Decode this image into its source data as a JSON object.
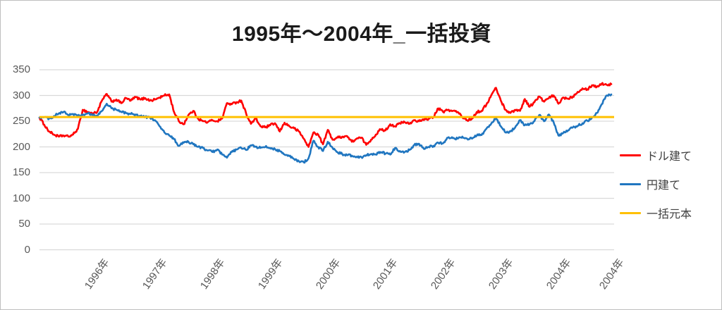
{
  "window": {
    "background": "#FFFFFF",
    "border_color": "#BFBFBF"
  },
  "chart_data": {
    "type": "line",
    "title": "1995年～2004年_一括投資",
    "x_interval": "month",
    "months": [
      "1995-01",
      "1995-02",
      "1995-03",
      "1995-04",
      "1995-05",
      "1995-06",
      "1995-07",
      "1995-08",
      "1995-09",
      "1995-10",
      "1995-11",
      "1995-12",
      "1996-01",
      "1996-02",
      "1996-03",
      "1996-04",
      "1996-05",
      "1996-06",
      "1996-07",
      "1996-08",
      "1996-09",
      "1996-10",
      "1996-11",
      "1996-12",
      "1997-01",
      "1997-02",
      "1997-03",
      "1997-04",
      "1997-05",
      "1997-06",
      "1997-07",
      "1997-08",
      "1997-09",
      "1997-10",
      "1997-11",
      "1997-12",
      "1998-01",
      "1998-02",
      "1998-03",
      "1998-04",
      "1998-05",
      "1998-06",
      "1998-07",
      "1998-08",
      "1998-09",
      "1998-10",
      "1998-11",
      "1998-12",
      "1999-01",
      "1999-02",
      "1999-03",
      "1999-04",
      "1999-05",
      "1999-06",
      "1999-07",
      "1999-08",
      "1999-09",
      "1999-10",
      "1999-11",
      "1999-12",
      "2000-01",
      "2000-02",
      "2000-03",
      "2000-04",
      "2000-05",
      "2000-06",
      "2000-07",
      "2000-08",
      "2000-09",
      "2000-10",
      "2000-11",
      "2000-12",
      "2001-01",
      "2001-02",
      "2001-03",
      "2001-04",
      "2001-05",
      "2001-06",
      "2001-07",
      "2001-08",
      "2001-09",
      "2001-10",
      "2001-11",
      "2001-12",
      "2002-01",
      "2002-02",
      "2002-03",
      "2002-04",
      "2002-05",
      "2002-06",
      "2002-07",
      "2002-08",
      "2002-09",
      "2002-10",
      "2002-11",
      "2002-12",
      "2003-01",
      "2003-02",
      "2003-03",
      "2003-04",
      "2003-05",
      "2003-06",
      "2003-07",
      "2003-08",
      "2003-09",
      "2003-10",
      "2003-11",
      "2003-12",
      "2004-01",
      "2004-02",
      "2004-03",
      "2004-04",
      "2004-05",
      "2004-06",
      "2004-07",
      "2004-08",
      "2004-09",
      "2004-10",
      "2004-11",
      "2004-12"
    ],
    "series": [
      {
        "name": "ドル建て",
        "color": "#FF0000",
        "values": [
          257,
          243,
          230,
          224,
          220,
          222,
          220,
          224,
          235,
          272,
          268,
          265,
          268,
          290,
          303,
          288,
          292,
          285,
          295,
          290,
          297,
          292,
          295,
          290,
          292,
          296,
          300,
          302,
          268,
          250,
          244,
          262,
          270,
          255,
          250,
          248,
          252,
          250,
          255,
          285,
          283,
          287,
          290,
          265,
          245,
          255,
          240,
          238,
          242,
          246,
          230,
          247,
          240,
          236,
          230,
          216,
          200,
          228,
          224,
          205,
          233,
          214,
          218,
          220,
          221,
          210,
          216,
          218,
          204,
          214,
          224,
          234,
          232,
          244,
          240,
          246,
          248,
          245,
          252,
          250,
          252,
          255,
          258,
          275,
          268,
          272,
          270,
          268,
          258,
          252,
          255,
          268,
          270,
          282,
          300,
          315,
          290,
          272,
          266,
          272,
          270,
          293,
          278,
          287,
          298,
          288,
          295,
          300,
          284,
          296,
          294,
          298,
          307,
          314,
          312,
          320,
          317,
          323,
          321,
          322
        ]
      },
      {
        "name": "円建て",
        "color": "#2076C0",
        "values": [
          257,
          258,
          255,
          260,
          265,
          268,
          262,
          264,
          260,
          262,
          265,
          262,
          260,
          270,
          284,
          275,
          272,
          268,
          266,
          264,
          263,
          260,
          258,
          257,
          252,
          240,
          228,
          222,
          215,
          202,
          208,
          210,
          205,
          200,
          198,
          193,
          190,
          195,
          185,
          179,
          190,
          195,
          198,
          194,
          203,
          200,
          198,
          200,
          198,
          196,
          192,
          185,
          182,
          176,
          172,
          170,
          178,
          212,
          200,
          192,
          210,
          198,
          190,
          186,
          184,
          183,
          181,
          180,
          184,
          186,
          185,
          190,
          187,
          185,
          198,
          192,
          190,
          194,
          204,
          206,
          196,
          200,
          202,
          208,
          207,
          218,
          217,
          216,
          220,
          216,
          216,
          222,
          223,
          235,
          245,
          256,
          240,
          228,
          230,
          238,
          252,
          242,
          244,
          250,
          262,
          250,
          263,
          248,
          222,
          227,
          232,
          238,
          241,
          246,
          251,
          257,
          266,
          283,
          300,
          302
        ]
      },
      {
        "name": "一括元本",
        "color": "#FFC000",
        "constant_value": 258
      }
    ],
    "ylim": [
      0,
      350
    ],
    "y_ticks": [
      0,
      50,
      100,
      150,
      200,
      250,
      300,
      350
    ],
    "x_tick_labels": [
      "1996年",
      "1997年",
      "1998年",
      "1999年",
      "2000年",
      "2001年",
      "2002年",
      "2003年",
      "2004年",
      "2004年"
    ],
    "x_tick_month_indices": [
      12,
      24,
      36,
      48,
      60,
      72,
      84,
      96,
      108,
      119
    ],
    "grid": "horizontal",
    "gridline_color": "#D9D9D9",
    "axis_label_color": "#595959",
    "legend_position": "right"
  },
  "legend": {
    "items": [
      {
        "label": "ドル建て",
        "color": "#FF0000"
      },
      {
        "label": "円建て",
        "color": "#2076C0"
      },
      {
        "label": "一括元本",
        "color": "#FFC000"
      }
    ]
  }
}
